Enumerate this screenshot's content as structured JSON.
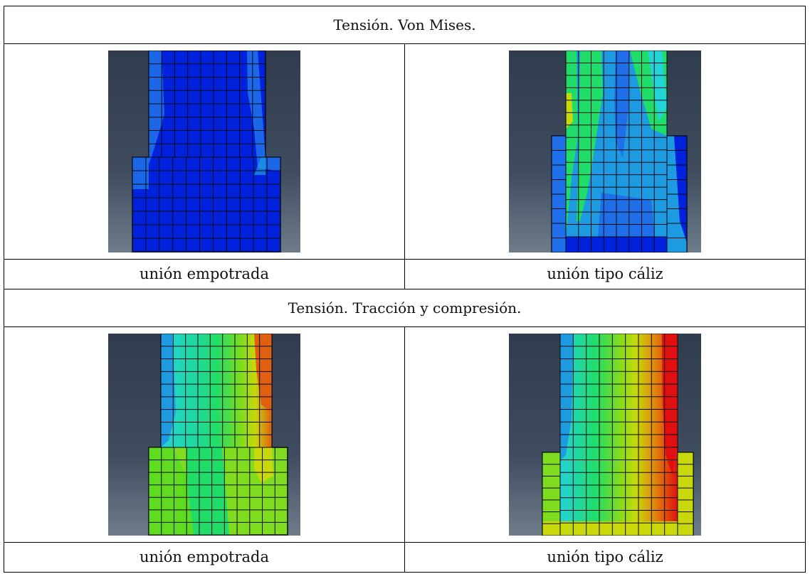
{
  "sections": [
    {
      "title": "Tensión. Von Mises.",
      "panels": [
        {
          "caption": "unión empotrada"
        },
        {
          "caption": "unión tipo cáliz"
        }
      ]
    },
    {
      "title": "Tensión. Tracción y compresión.",
      "panels": [
        {
          "caption": "unión empotrada"
        },
        {
          "caption": "unión tipo cáliz"
        }
      ]
    }
  ],
  "colors": {
    "bg_top": "#2f3c4e",
    "bg_bottom": "#6e7c8a",
    "mesh_line": "#0a0a14",
    "fea_blue": "#0022dd",
    "fea_lightblue": "#1e9be0",
    "fea_cyan": "#22d3d8",
    "fea_green": "#20dd6a",
    "fea_lime": "#7fdc1e",
    "fea_yellow": "#c8d80a",
    "fea_orange": "#e08a0a",
    "fea_red": "#e01010"
  }
}
